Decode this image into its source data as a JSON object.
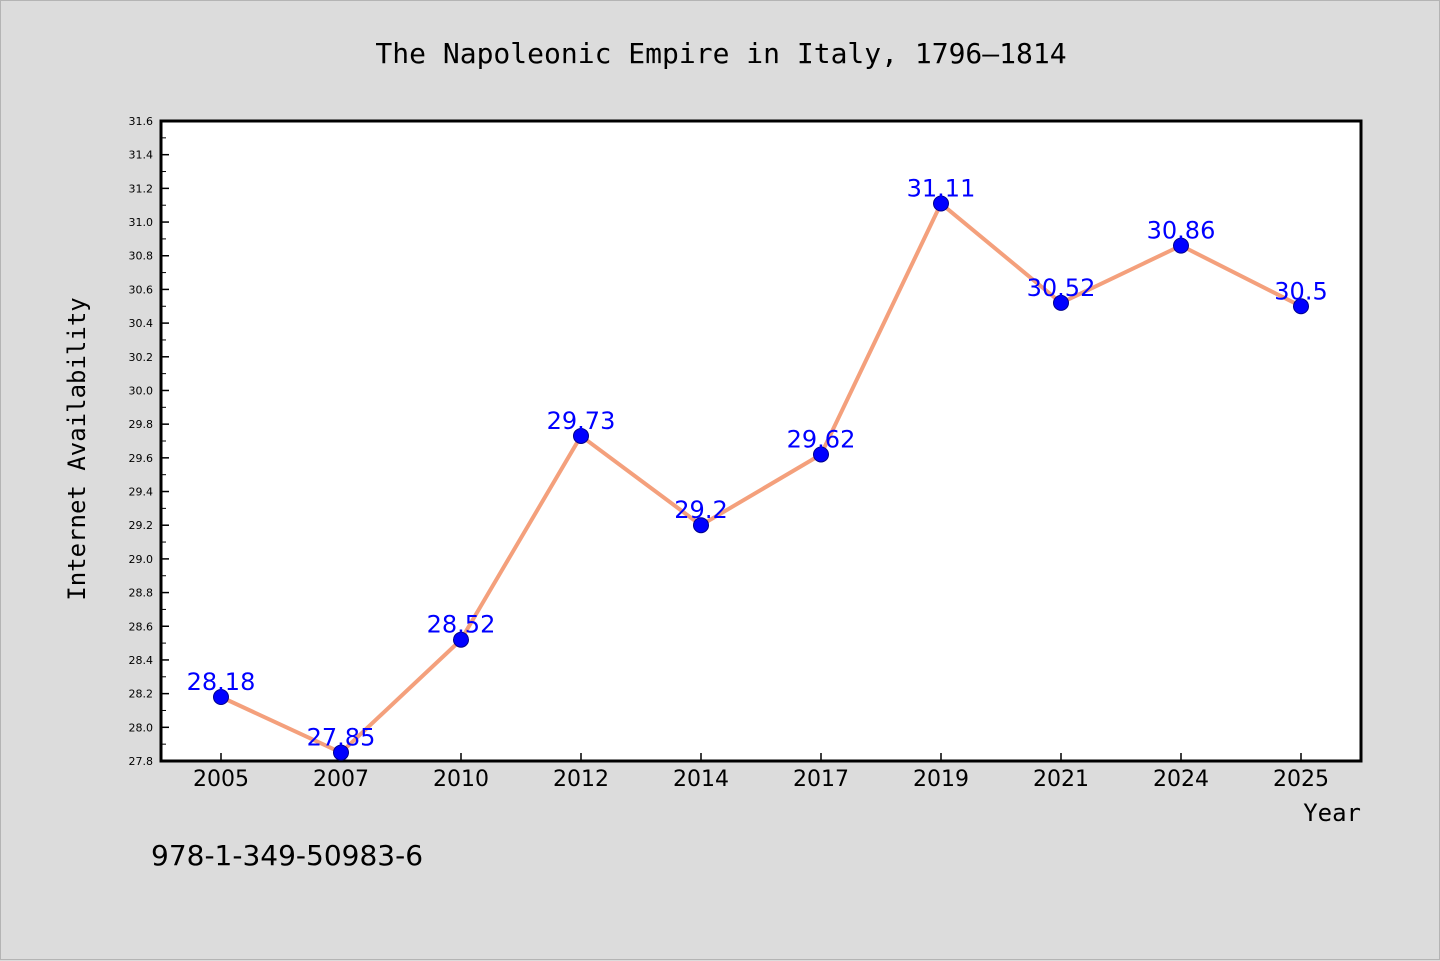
{
  "chart_data": {
    "type": "line",
    "title": "The Napoleonic Empire in Italy, 1796–1814",
    "xlabel": "Year",
    "ylabel": "Internet Availability",
    "categories": [
      "2005",
      "2007",
      "2010",
      "2012",
      "2014",
      "2017",
      "2019",
      "2021",
      "2024",
      "2025"
    ],
    "series": [
      {
        "values": [
          28.18,
          27.85,
          28.52,
          29.73,
          29.2,
          29.62,
          31.11,
          30.52,
          30.86,
          30.5
        ],
        "labels": [
          "28.18",
          "27.85",
          "28.52",
          "29.73",
          "29.2",
          "29.62",
          "31.11",
          "30.52",
          "30.86",
          "30.5"
        ],
        "line_color": "#f4a07c",
        "marker_color": "#0000ff"
      }
    ],
    "ylim": [
      27.8,
      31.6
    ],
    "yticks": [
      "27.8",
      "28.0",
      "28.2",
      "28.4",
      "28.6",
      "28.8",
      "29.0",
      "29.2",
      "29.4",
      "29.6",
      "29.8",
      "30.0",
      "30.2",
      "30.4",
      "30.6",
      "30.8",
      "31.0",
      "31.2",
      "31.4",
      "31.6"
    ],
    "grid": false,
    "legend": "none",
    "colors": {
      "page_background": "#dcdcdc",
      "plot_background": "#ffffff"
    }
  },
  "footer": {
    "isbn": "978-1-349-50983-6"
  }
}
